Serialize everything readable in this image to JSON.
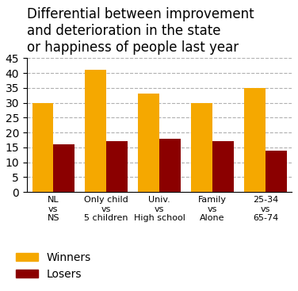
{
  "chart_data": {
    "type": "bar",
    "title": "Differential between improvement\nand deterioration in the state\nor happiness of people last year",
    "categories": [
      "NL\nvs\nNS",
      "Only child\nvs\n5 children",
      "Univ.\nvs\nHigh school",
      "Family\nvs\nAlone",
      "25-34\nvs\n65-74"
    ],
    "series": [
      {
        "name": "Winners",
        "color": "#f5a800",
        "values": [
          30,
          41,
          33,
          30,
          35
        ]
      },
      {
        "name": "Losers",
        "color": "#8b0000",
        "values": [
          16,
          17,
          18,
          17,
          14
        ]
      }
    ],
    "ylim": [
      0,
      45
    ],
    "yticks": [
      0,
      5,
      10,
      15,
      20,
      25,
      30,
      35,
      40,
      45
    ],
    "grid": true,
    "legend": "lower left"
  }
}
